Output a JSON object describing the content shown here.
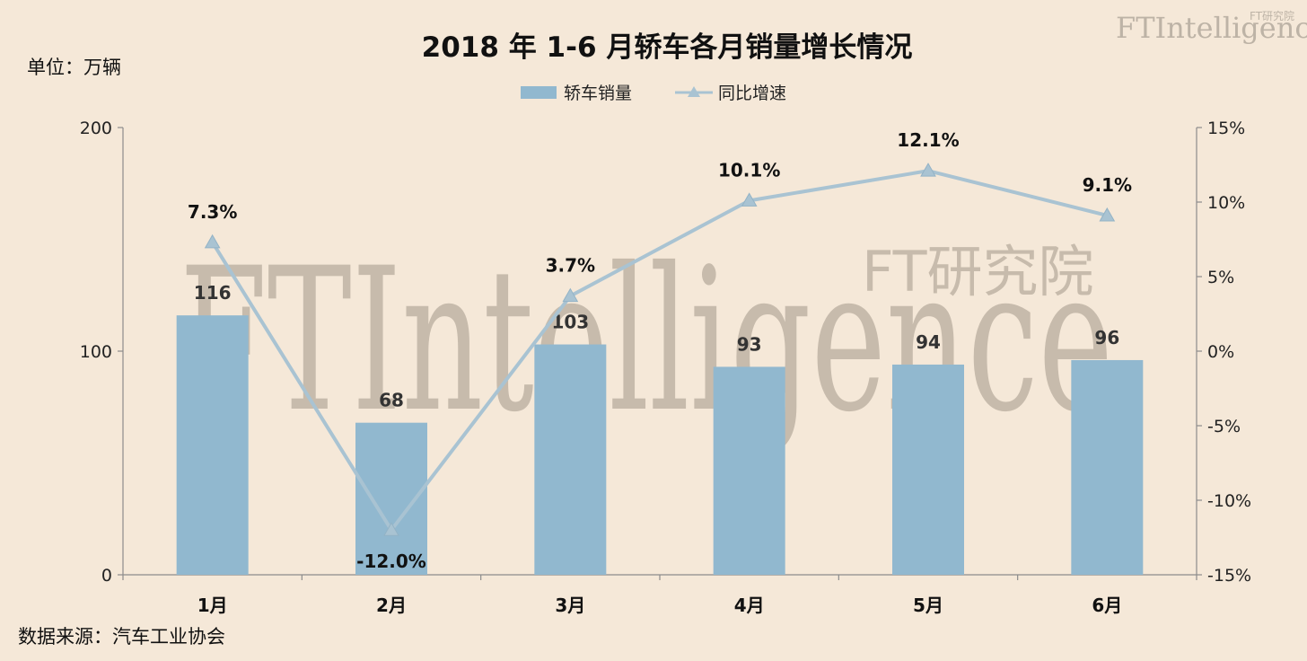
{
  "chart_data": {
    "type": "bar",
    "title": "2018 年 1-6 月轿车各月销量增长情况",
    "unit_label": "单位：万辆",
    "source": "数据来源：汽车工业协会",
    "categories": [
      "1月",
      "2月",
      "3月",
      "4月",
      "5月",
      "6月"
    ],
    "series": [
      {
        "name": "轿车销量",
        "type": "bar",
        "axis": "left",
        "values": [
          116,
          68,
          103,
          93,
          94,
          96
        ],
        "labels": [
          "116",
          "68",
          "103",
          "93",
          "94",
          "96"
        ],
        "color": "#91b8cf"
      },
      {
        "name": "同比增速",
        "type": "line",
        "axis": "right",
        "values": [
          7.3,
          -12.0,
          3.7,
          10.1,
          12.1,
          9.1
        ],
        "labels": [
          "7.3%",
          "-12.0%",
          "3.7%",
          "10.1%",
          "12.1%",
          "9.1%"
        ],
        "color": "#a9c3d2",
        "marker": "triangle"
      }
    ],
    "y_left": {
      "ylim": [
        0,
        200
      ],
      "ticks": [
        "0",
        "100",
        "200"
      ]
    },
    "y_right": {
      "ylim": [
        -15,
        15
      ],
      "ticks": [
        "15%",
        "10%",
        "5%",
        "0%",
        "-5%",
        "-10%",
        "-15%"
      ]
    },
    "legend_position": "top-center",
    "grid": false
  },
  "watermark": {
    "brand": "FTIntelligence",
    "brand_cn": "FT研究院",
    "corner_brand": "FTIntelligence",
    "corner_cn": "FT研究院"
  }
}
